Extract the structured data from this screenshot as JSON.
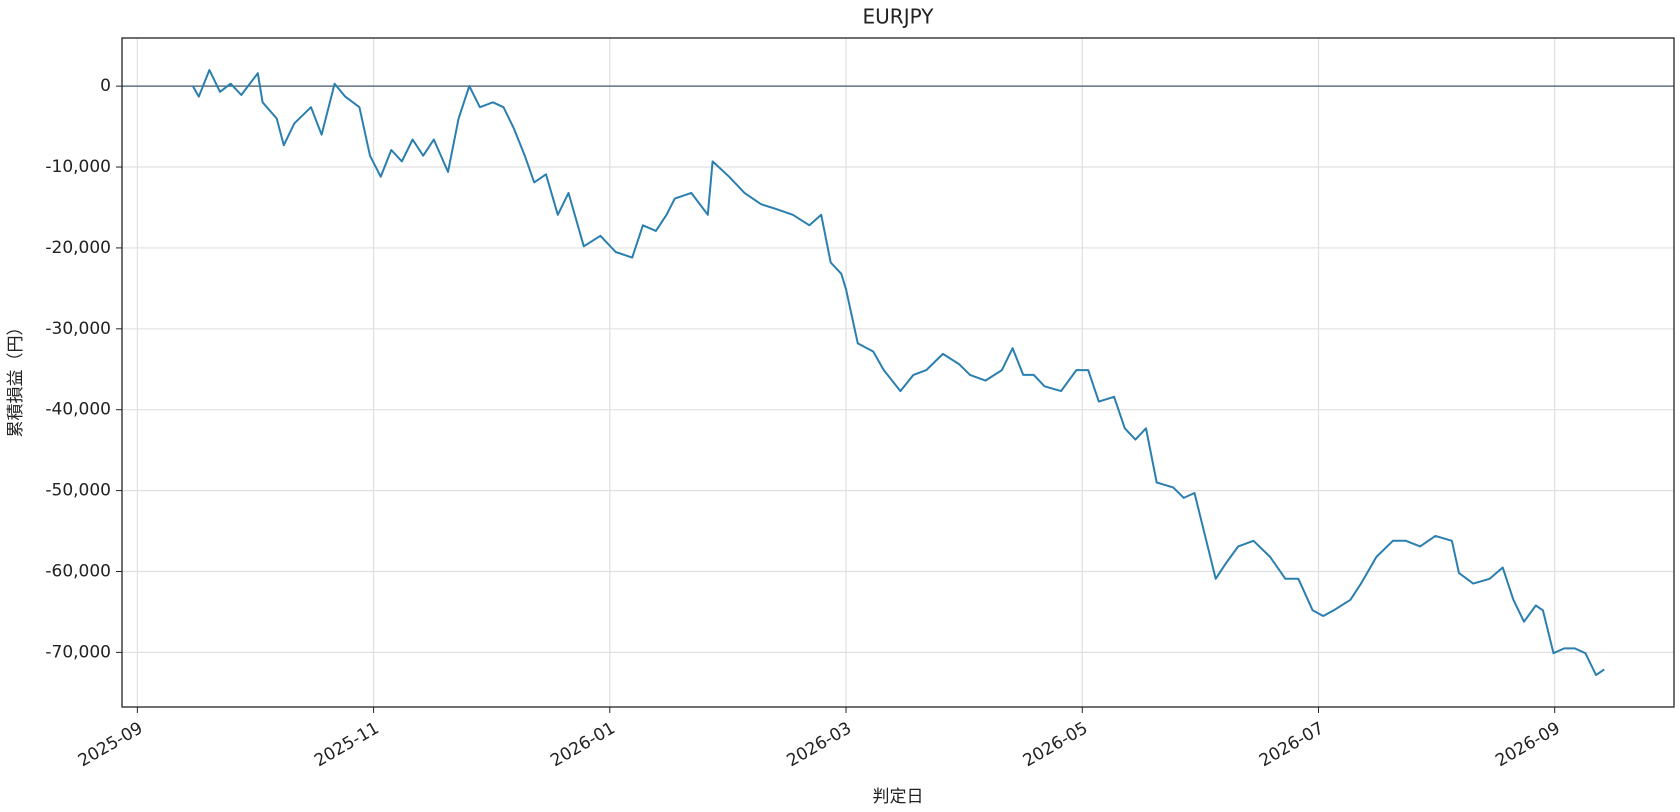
{
  "chart_data": {
    "type": "line",
    "title": "EURJPY",
    "x_label": "判定日",
    "y_label": "累積損益（円）",
    "x": [
      0.47,
      0.52,
      0.61,
      0.7,
      0.79,
      0.88,
      1.02,
      1.06,
      1.18,
      1.24,
      1.33,
      1.47,
      1.56,
      1.67,
      1.76,
      1.88,
      1.97,
      2.06,
      2.15,
      2.24,
      2.33,
      2.42,
      2.51,
      2.63,
      2.72,
      2.81,
      2.9,
      3.01,
      3.1,
      3.19,
      3.28,
      3.36,
      3.46,
      3.56,
      3.65,
      3.78,
      3.92,
      4.05,
      4.19,
      4.28,
      4.39,
      4.48,
      4.55,
      4.69,
      4.83,
      4.87,
      5.01,
      5.14,
      5.28,
      5.41,
      5.55,
      5.69,
      5.79,
      5.87,
      5.96,
      6.0,
      6.1,
      6.23,
      6.32,
      6.46,
      6.57,
      6.68,
      6.82,
      6.96,
      7.05,
      7.18,
      7.32,
      7.41,
      7.5,
      7.59,
      7.68,
      7.82,
      7.95,
      8.05,
      8.14,
      8.27,
      8.36,
      8.45,
      8.54,
      8.63,
      8.77,
      8.86,
      8.95,
      9.04,
      9.13,
      9.22,
      9.32,
      9.45,
      9.59,
      9.72,
      9.83,
      9.95,
      10.04,
      10.13,
      10.27,
      10.36,
      10.49,
      10.63,
      10.74,
      10.86,
      10.99,
      11.13,
      11.19,
      11.31,
      11.45,
      11.56,
      11.65,
      11.74,
      11.84,
      11.9,
      11.99,
      12.08,
      12.17,
      12.26,
      12.35,
      12.42
    ],
    "values": [
      0,
      -1300,
      2000,
      -700,
      300,
      -1100,
      1600,
      -2000,
      -4000,
      -7300,
      -4600,
      -2600,
      -6000,
      300,
      -1300,
      -2600,
      -8600,
      -11200,
      -7900,
      -9300,
      -6600,
      -8600,
      -6600,
      -10600,
      -4000,
      0,
      -2600,
      -2000,
      -2600,
      -5300,
      -8600,
      -11900,
      -10900,
      -15900,
      -13200,
      -19800,
      -18500,
      -20500,
      -21200,
      -17200,
      -17900,
      -15900,
      -13900,
      -13200,
      -15900,
      -9300,
      -11200,
      -13200,
      -14600,
      -15200,
      -15900,
      -17200,
      -15900,
      -21800,
      -23200,
      -25100,
      -31800,
      -32800,
      -35100,
      -37700,
      -35700,
      -35100,
      -33100,
      -34400,
      -35700,
      -36400,
      -35100,
      -32400,
      -35700,
      -35700,
      -37100,
      -37700,
      -35100,
      -35100,
      -39000,
      -38400,
      -42300,
      -43700,
      -42300,
      -49000,
      -49600,
      -50900,
      -50300,
      -55600,
      -60900,
      -58900,
      -56900,
      -56200,
      -58200,
      -60900,
      -60900,
      -64800,
      -65500,
      -64800,
      -63500,
      -61500,
      -58200,
      -56200,
      -56200,
      -56900,
      -55600,
      -56200,
      -60200,
      -61500,
      -60900,
      -59500,
      -63500,
      -66200,
      -64200,
      -64800,
      -70100,
      -69500,
      -69500,
      -70100,
      -72800,
      -72100
    ],
    "color": "#2a7fb0",
    "xlim": [
      -0.13,
      13.01
    ],
    "xticks": [
      {
        "value": 0,
        "label": "2025-09"
      },
      {
        "value": 2,
        "label": "2025-11"
      },
      {
        "value": 4,
        "label": "2026-01"
      },
      {
        "value": 6,
        "label": "2026-03"
      },
      {
        "value": 8,
        "label": "2026-05"
      },
      {
        "value": 10,
        "label": "2026-07"
      },
      {
        "value": 12,
        "label": "2026-09"
      }
    ],
    "ylim": [
      -76750,
      5950
    ],
    "yticks": [
      {
        "value": -70000,
        "label": "-70,000"
      },
      {
        "value": -60000,
        "label": "-60,000"
      },
      {
        "value": -50000,
        "label": "-50,000"
      },
      {
        "value": -40000,
        "label": "-40,000"
      },
      {
        "value": -30000,
        "label": "-30,000"
      },
      {
        "value": -20000,
        "label": "-20,000"
      },
      {
        "value": -10000,
        "label": "-10,000"
      },
      0
    ],
    "grid": true,
    "hline": 0,
    "hline_color": "#5f7282"
  }
}
